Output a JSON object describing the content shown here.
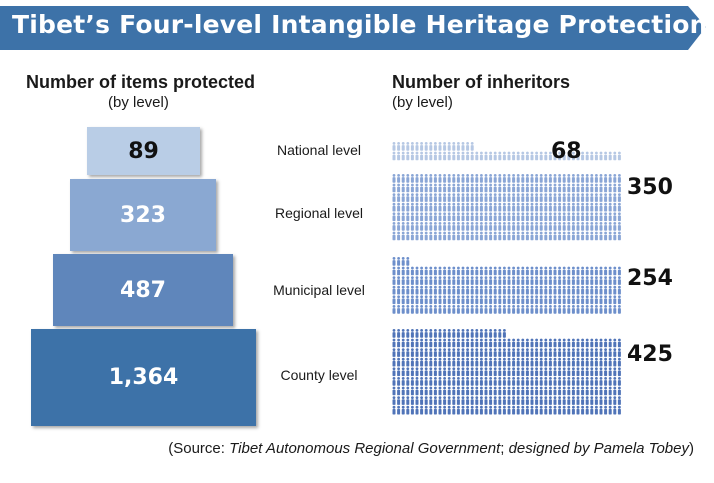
{
  "title": "Tibet’s Four-level Intangible Heritage Protection",
  "colors": {
    "title_bar": "#3d72a8",
    "national": "#b9cde6",
    "regional": "#8aa8d2",
    "municipal": "#5f86bb",
    "county": "#3d72a8",
    "people_national": "#b6c8e4",
    "people_regional": "#8aa6d6",
    "people_municipal": "#6d8fcb",
    "people_county": "#5074b8"
  },
  "chart_data": [
    {
      "type": "bar",
      "title": "Number of items protected",
      "subtitle": "(by level)",
      "categories": [
        "National  level",
        "Regional level",
        "Municipal level",
        "County level"
      ],
      "values": [
        89,
        323,
        487,
        1364
      ],
      "value_labels": [
        "89",
        "323",
        "487",
        "1,364"
      ]
    },
    {
      "type": "bar",
      "title": "Number of inheritors",
      "subtitle": "(by level)",
      "categories": [
        "National  level",
        "Regional level",
        "Municipal level",
        "County level"
      ],
      "values": [
        68,
        350,
        254,
        425
      ],
      "value_labels": [
        "68",
        "350",
        "254",
        "425"
      ]
    }
  ],
  "source": {
    "prefix": "(Source: ",
    "org": "Tibet Autonomous Regional Government",
    "middle": "; ",
    "designer": "designed by Pamela Tobey",
    "suffix": ")"
  }
}
